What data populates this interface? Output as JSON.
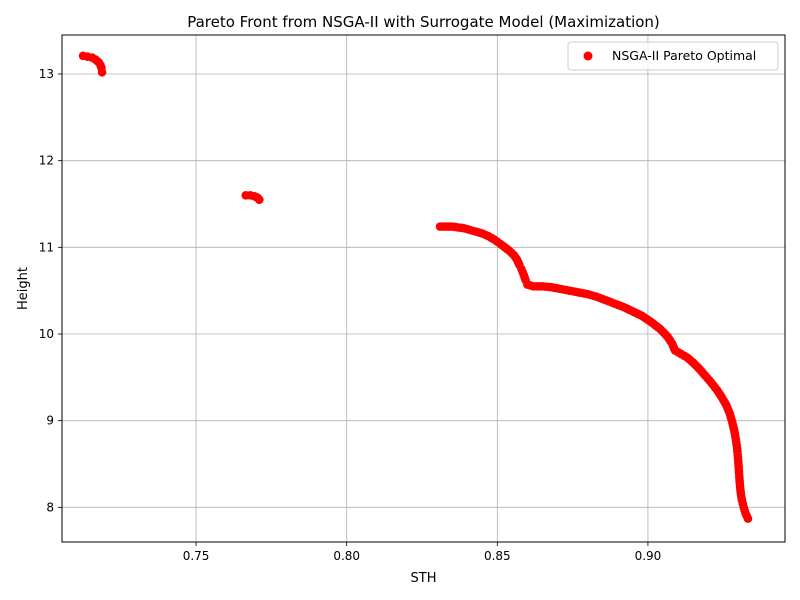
{
  "chart_data": {
    "type": "scatter",
    "title": "Pareto Front from NSGA-II with Surrogate Model (Maximization)",
    "xlabel": "STH",
    "ylabel": "Height",
    "xlim": [
      0.7055,
      0.9455
    ],
    "ylim": [
      7.6,
      13.45
    ],
    "xticks": [
      0.75,
      0.8,
      0.85,
      0.9
    ],
    "xtick_labels": [
      "0.75",
      "0.80",
      "0.85",
      "0.90"
    ],
    "yticks": [
      8,
      9,
      10,
      11,
      12,
      13
    ],
    "ytick_labels": [
      "8",
      "9",
      "10",
      "11",
      "12",
      "13"
    ],
    "grid": true,
    "legend_position": "top-right",
    "series": [
      {
        "name": "NSGA-II Pareto Optimal",
        "color": "#ff0000",
        "points": [
          [
            0.7125,
            13.21
          ],
          [
            0.714,
            13.2
          ],
          [
            0.7155,
            13.19
          ],
          [
            0.7165,
            13.17
          ],
          [
            0.7172,
            13.15
          ],
          [
            0.7178,
            13.13
          ],
          [
            0.7183,
            13.1
          ],
          [
            0.7186,
            13.07
          ],
          [
            0.7188,
            13.02
          ],
          [
            0.7665,
            11.6
          ],
          [
            0.768,
            11.6
          ],
          [
            0.7693,
            11.59
          ],
          [
            0.77,
            11.58
          ],
          [
            0.7705,
            11.57
          ],
          [
            0.771,
            11.55
          ],
          [
            0.831,
            11.24
          ],
          [
            0.833,
            11.24
          ],
          [
            0.835,
            11.24
          ],
          [
            0.837,
            11.23
          ],
          [
            0.839,
            11.22
          ],
          [
            0.841,
            11.2
          ],
          [
            0.843,
            11.18
          ],
          [
            0.845,
            11.16
          ],
          [
            0.847,
            11.13
          ],
          [
            0.849,
            11.09
          ],
          [
            0.851,
            11.04
          ],
          [
            0.8525,
            11.0
          ],
          [
            0.854,
            10.96
          ],
          [
            0.8555,
            10.91
          ],
          [
            0.8565,
            10.86
          ],
          [
            0.8573,
            10.8
          ],
          [
            0.858,
            10.75
          ],
          [
            0.8588,
            10.68
          ],
          [
            0.8594,
            10.62
          ],
          [
            0.86,
            10.57
          ],
          [
            0.862,
            10.55
          ],
          [
            0.865,
            10.55
          ],
          [
            0.868,
            10.54
          ],
          [
            0.871,
            10.52
          ],
          [
            0.874,
            10.5
          ],
          [
            0.877,
            10.48
          ],
          [
            0.88,
            10.46
          ],
          [
            0.883,
            10.43
          ],
          [
            0.886,
            10.39
          ],
          [
            0.889,
            10.35
          ],
          [
            0.892,
            10.31
          ],
          [
            0.895,
            10.26
          ],
          [
            0.898,
            10.21
          ],
          [
            0.901,
            10.14
          ],
          [
            0.904,
            10.06
          ],
          [
            0.9065,
            9.97
          ],
          [
            0.908,
            9.89
          ],
          [
            0.909,
            9.81
          ],
          [
            0.911,
            9.77
          ],
          [
            0.913,
            9.73
          ],
          [
            0.915,
            9.67
          ],
          [
            0.917,
            9.6
          ],
          [
            0.919,
            9.52
          ],
          [
            0.921,
            9.44
          ],
          [
            0.923,
            9.35
          ],
          [
            0.9245,
            9.27
          ],
          [
            0.926,
            9.18
          ],
          [
            0.9272,
            9.08
          ],
          [
            0.928,
            8.98
          ],
          [
            0.9287,
            8.88
          ],
          [
            0.9292,
            8.78
          ],
          [
            0.9296,
            8.68
          ],
          [
            0.9299,
            8.57
          ],
          [
            0.9301,
            8.47
          ],
          [
            0.9303,
            8.37
          ],
          [
            0.9305,
            8.27
          ],
          [
            0.9308,
            8.17
          ],
          [
            0.9312,
            8.08
          ],
          [
            0.9318,
            8.0
          ],
          [
            0.9324,
            7.93
          ],
          [
            0.9332,
            7.87
          ]
        ]
      }
    ]
  }
}
